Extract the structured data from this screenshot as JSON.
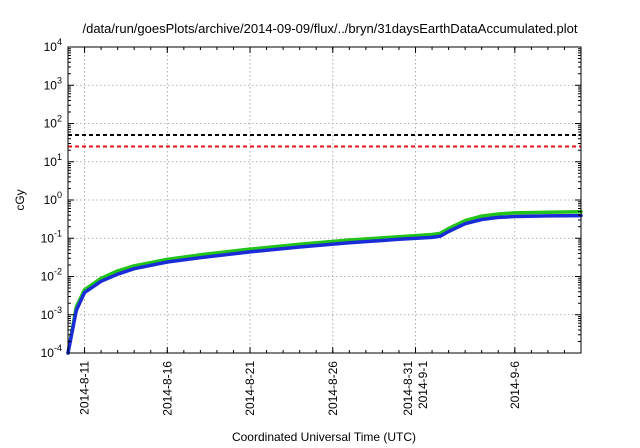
{
  "chart_data": {
    "type": "line",
    "title": "/data/run/goesPlots/archive/2014-09-09/flux/../bryn/31daysEarthDataAccumulated.plot",
    "xlabel": "Coordinated Universal Time (UTC)",
    "ylabel": "cGy",
    "yscale": "log",
    "ylim": [
      0.0001,
      10000
    ],
    "xlim": [
      "2014-08-10",
      "2014-09-10"
    ],
    "grid": true,
    "y_ticks": [
      {
        "value": 0.0001,
        "base": "10",
        "exp": "-4"
      },
      {
        "value": 0.001,
        "base": "10",
        "exp": "-3"
      },
      {
        "value": 0.01,
        "base": "10",
        "exp": "-2"
      },
      {
        "value": 0.1,
        "base": "10",
        "exp": "-1"
      },
      {
        "value": 1,
        "base": "10",
        "exp": "0"
      },
      {
        "value": 10,
        "base": "10",
        "exp": "1"
      },
      {
        "value": 100,
        "base": "10",
        "exp": "2"
      },
      {
        "value": 1000,
        "base": "10",
        "exp": "3"
      },
      {
        "value": 10000,
        "base": "10",
        "exp": "4"
      }
    ],
    "x_ticks": [
      {
        "date": "2014-08-11",
        "labels": [
          "2014-8-11"
        ]
      },
      {
        "date": "2014-08-16",
        "labels": [
          "2014-8-16"
        ]
      },
      {
        "date": "2014-08-21",
        "labels": [
          "2014-8-21"
        ]
      },
      {
        "date": "2014-08-26",
        "labels": [
          "2014-8-26"
        ]
      },
      {
        "date": "2014-08-31",
        "labels": [
          "2014-8-31",
          "2014-9-1"
        ]
      },
      {
        "date": "2014-09-06",
        "labels": [
          "2014-9-6"
        ]
      }
    ],
    "thresholds": [
      {
        "value": 50,
        "color": "#000000"
      },
      {
        "value": 25,
        "color": "#e8111a"
      }
    ],
    "series": [
      {
        "color": "#22c31a",
        "points": [
          [
            "2014-08-10",
            0.0001
          ],
          [
            "2014-08-10T12:00",
            0.0016
          ],
          [
            "2014-08-11",
            0.0045
          ],
          [
            "2014-08-12",
            0.009
          ],
          [
            "2014-08-13",
            0.014
          ],
          [
            "2014-08-14",
            0.019
          ],
          [
            "2014-08-16",
            0.028
          ],
          [
            "2014-08-18",
            0.037
          ],
          [
            "2014-08-21",
            0.052
          ],
          [
            "2014-08-24",
            0.07
          ],
          [
            "2014-08-27",
            0.09
          ],
          [
            "2014-08-30",
            0.11
          ],
          [
            "2014-09-01",
            0.125
          ],
          [
            "2014-09-01T12:00",
            0.135
          ],
          [
            "2014-09-02",
            0.18
          ],
          [
            "2014-09-03",
            0.29
          ],
          [
            "2014-09-04",
            0.38
          ],
          [
            "2014-09-05",
            0.43
          ],
          [
            "2014-09-06",
            0.46
          ],
          [
            "2014-09-08",
            0.48
          ],
          [
            "2014-09-10",
            0.49
          ]
        ]
      },
      {
        "color": "#1a2bd8",
        "points": [
          [
            "2014-08-10",
            0.0001
          ],
          [
            "2014-08-10T12:00",
            0.0013
          ],
          [
            "2014-08-11",
            0.0038
          ],
          [
            "2014-08-12",
            0.0075
          ],
          [
            "2014-08-13",
            0.0115
          ],
          [
            "2014-08-14",
            0.016
          ],
          [
            "2014-08-16",
            0.024
          ],
          [
            "2014-08-18",
            0.031
          ],
          [
            "2014-08-21",
            0.044
          ],
          [
            "2014-08-24",
            0.059
          ],
          [
            "2014-08-27",
            0.076
          ],
          [
            "2014-08-30",
            0.094
          ],
          [
            "2014-09-01",
            0.105
          ],
          [
            "2014-09-01T12:00",
            0.113
          ],
          [
            "2014-09-02",
            0.15
          ],
          [
            "2014-09-03",
            0.24
          ],
          [
            "2014-09-04",
            0.31
          ],
          [
            "2014-09-05",
            0.35
          ],
          [
            "2014-09-06",
            0.37
          ],
          [
            "2014-09-08",
            0.385
          ],
          [
            "2014-09-10",
            0.39
          ]
        ]
      }
    ]
  }
}
